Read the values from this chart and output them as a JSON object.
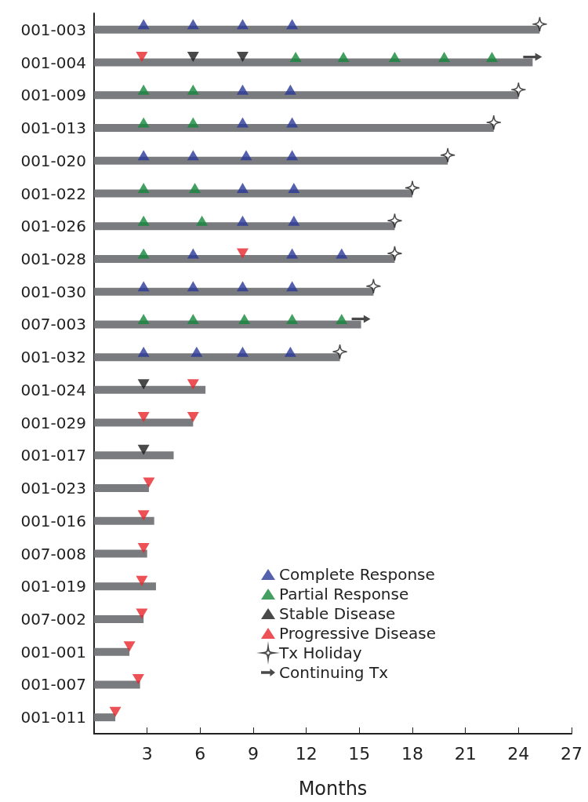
{
  "chart_data": {
    "type": "bar",
    "orientation": "horizontal",
    "xlabel": "Months",
    "xlim": [
      0,
      27
    ],
    "xticks": [
      3,
      6,
      9,
      12,
      15,
      18,
      21,
      24,
      27
    ],
    "grid": false,
    "legend": "bottom",
    "categories": [
      "001-003",
      "001-004",
      "001-009",
      "001-013",
      "001-020",
      "001-022",
      "001-026",
      "001-028",
      "001-030",
      "007-003",
      "001-032",
      "001-024",
      "001-029",
      "001-017",
      "001-023",
      "001-016",
      "007-008",
      "001-019",
      "007-002",
      "001-001",
      "001-007",
      "001-011"
    ],
    "series": [
      {
        "color": "#7a7b7e",
        "values": [
          25.2,
          24.8,
          24.0,
          22.6,
          20.0,
          18.0,
          17.0,
          17.0,
          15.8,
          15.1,
          13.9,
          6.3,
          5.6,
          4.5,
          3.1,
          3.4,
          3.0,
          3.5,
          2.8,
          2.0,
          2.6,
          1.2
        ]
      },
      {
        "type": "scatter",
        "name": "Complete Response",
        "color": "#2a3a98",
        "marker": "triangle",
        "x": [
          "001-003",
          "001-003",
          "001-003",
          "001-003",
          "001-009",
          "001-009",
          "001-013",
          "001-013",
          "001-020",
          "001-020",
          "001-020",
          "001-020",
          "001-022",
          "001-022",
          "001-026",
          "001-026",
          "001-028",
          "001-028",
          "001-028",
          "001-030",
          "001-030",
          "001-030",
          "001-030",
          "001-032",
          "001-032",
          "001-032",
          "001-032"
        ],
        "values": [
          2.8,
          5.6,
          8.4,
          11.2,
          8.4,
          11.1,
          8.4,
          11.2,
          2.8,
          5.6,
          8.6,
          11.2,
          8.4,
          11.3,
          8.4,
          11.3,
          5.6,
          11.2,
          14.0,
          2.8,
          5.6,
          8.4,
          11.2,
          2.8,
          5.8,
          8.4,
          11.1
        ]
      },
      {
        "type": "scatter",
        "name": "Partial Response",
        "color": "#14873b",
        "marker": "triangle",
        "x": [
          "001-004",
          "001-004",
          "001-004",
          "001-004",
          "001-004",
          "001-009",
          "001-009",
          "001-013",
          "001-013",
          "001-022",
          "001-022",
          "001-026",
          "001-026",
          "001-028",
          "007-003",
          "007-003",
          "007-003",
          "007-003",
          "007-003"
        ],
        "values": [
          11.4,
          14.1,
          17.0,
          19.8,
          22.5,
          2.8,
          5.6,
          2.8,
          5.6,
          2.8,
          5.7,
          2.8,
          6.1,
          2.8,
          2.8,
          5.6,
          8.5,
          11.2,
          14.0
        ]
      },
      {
        "type": "scatter",
        "name": "Stable Disease",
        "color": "#1c1c1c",
        "marker": "triangle-down",
        "x": [
          "001-004",
          "001-004",
          "001-024",
          "001-017"
        ],
        "values": [
          5.6,
          8.4,
          2.8,
          2.8
        ]
      },
      {
        "type": "scatter",
        "name": "Progressive Disease",
        "color": "#e8262a",
        "marker": "triangle-down",
        "x": [
          "001-004",
          "001-028",
          "001-024",
          "001-029",
          "001-029",
          "001-023",
          "001-016",
          "007-008",
          "001-019",
          "007-002",
          "001-001",
          "001-007",
          "001-011"
        ],
        "values": [
          2.7,
          8.4,
          5.6,
          2.8,
          5.6,
          3.1,
          2.8,
          2.8,
          2.7,
          2.7,
          2.0,
          2.5,
          1.2
        ]
      },
      {
        "type": "scatter",
        "name": "Tx Holiday",
        "color": "#1c1c1c",
        "marker": "star",
        "x": [
          "001-003",
          "001-009",
          "001-013",
          "001-020",
          "001-022",
          "001-026",
          "001-028",
          "001-030",
          "001-032"
        ],
        "values": [
          25.2,
          24.0,
          22.6,
          20.0,
          18.0,
          17.0,
          17.0,
          15.8,
          13.9
        ]
      },
      {
        "type": "scatter",
        "name": "Continuing Tx",
        "color": "#1c1c1c",
        "x": [
          "001-004",
          "007-003"
        ],
        "values": [
          24.8,
          15.1
        ]
      }
    ]
  }
}
